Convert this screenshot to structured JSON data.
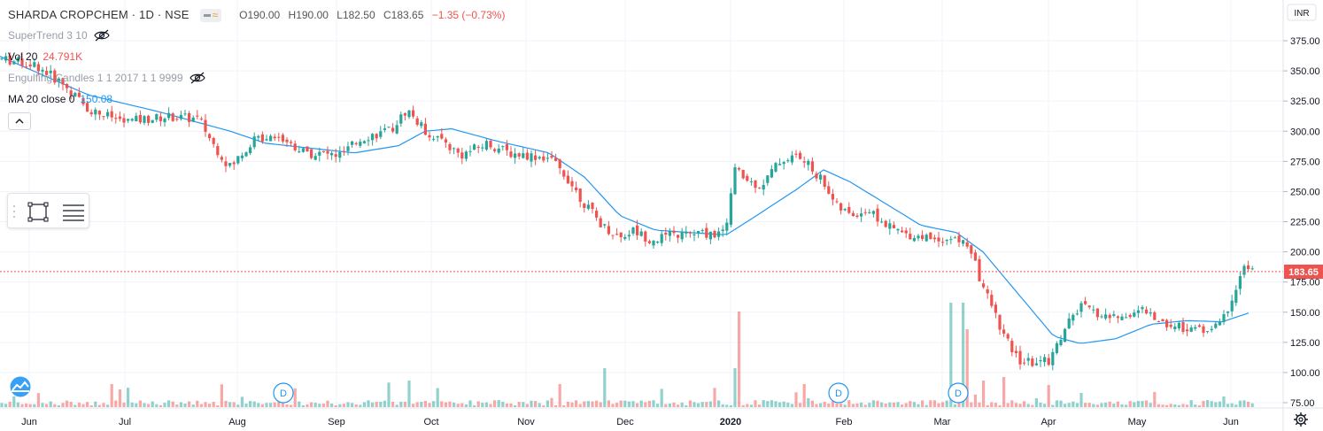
{
  "header": {
    "symbol": "SHARDA CROPCHEM · 1D · NSE",
    "open": "O190.00",
    "high": "H190.00",
    "low": "L182.50",
    "close": "C183.65",
    "change": "−1.35 (−0.73%)",
    "badge_icon": "wave-icon"
  },
  "indicators": {
    "supertrend": "SuperTrend 3 10",
    "volume_label": "Vol 20",
    "volume_value": "24.791K",
    "engulfing": "Engulfing Candles 1 1 2017 1 1 9999",
    "ma_label": "MA 20 close 0",
    "ma_value": "150.08"
  },
  "price_axis": {
    "currency": "INR",
    "ticks": [
      "375.00",
      "350.00",
      "325.00",
      "300.00",
      "275.00",
      "250.00",
      "225.00",
      "200.00",
      "175.00",
      "150.00",
      "125.00",
      "100.00",
      "75.00"
    ],
    "last_price_label": "183.65"
  },
  "time_axis": {
    "labels": [
      "Jun",
      "Jul",
      "Aug",
      "Sep",
      "Oct",
      "Nov",
      "Dec",
      "2020",
      "Feb",
      "Mar",
      "Apr",
      "May",
      "Jun"
    ]
  },
  "dividend_marker": "D",
  "colors": {
    "up": "#26a69a",
    "down": "#ef5350",
    "ma": "#2196f3",
    "last_price": "#ef5350",
    "grid": "#f0f3fa"
  },
  "chart_data": {
    "type": "candlestick",
    "series_ma": "MA 20 close 0",
    "ylim": [
      75,
      385
    ],
    "monthly_close": {
      "categories": [
        "Jun",
        "Jul",
        "Aug",
        "Sep",
        "Oct",
        "Nov",
        "Dec",
        "2020",
        "Feb",
        "Mar",
        "Apr",
        "May",
        "Jun"
      ],
      "values": [
        350,
        310,
        270,
        290,
        278,
        275,
        213,
        215,
        232,
        210,
        108,
        150,
        183.65
      ]
    },
    "ma_values": [
      360,
      325,
      295,
      290,
      300,
      280,
      215,
      235,
      250,
      215,
      125,
      140,
      150
    ],
    "last": {
      "open": 190.0,
      "high": 190.0,
      "low": 182.5,
      "close": 183.65,
      "change": -1.35,
      "change_pct": -0.73
    }
  }
}
